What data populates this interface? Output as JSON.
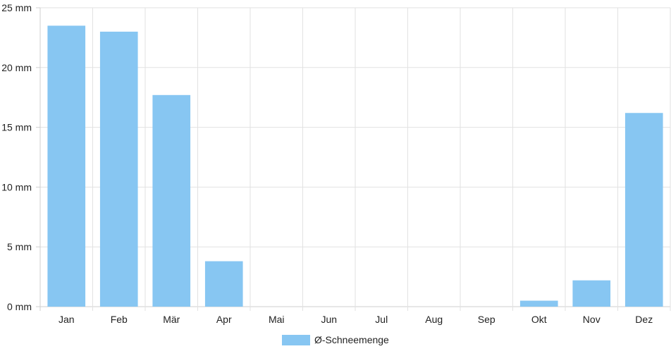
{
  "chart_data": {
    "type": "bar",
    "categories": [
      "Jan",
      "Feb",
      "Mär",
      "Apr",
      "Mai",
      "Jun",
      "Jul",
      "Aug",
      "Sep",
      "Okt",
      "Nov",
      "Dez"
    ],
    "series": [
      {
        "name": "Ø-Schneemenge",
        "color": "#87c6f2",
        "values": [
          23.5,
          23.0,
          17.7,
          3.8,
          0,
          0,
          0,
          0,
          0,
          0.5,
          2.2,
          16.2
        ]
      }
    ],
    "ylim": [
      0,
      25
    ],
    "yticks": [
      0,
      5,
      10,
      15,
      20,
      25
    ],
    "ytick_unit": "mm",
    "ytick_labels": [
      "0 mm",
      "5 mm",
      "10 mm",
      "15 mm",
      "20 mm",
      "25 mm"
    ],
    "grid": true,
    "legend": {
      "position": "bottom",
      "label": "Ø-Schneemenge"
    }
  }
}
